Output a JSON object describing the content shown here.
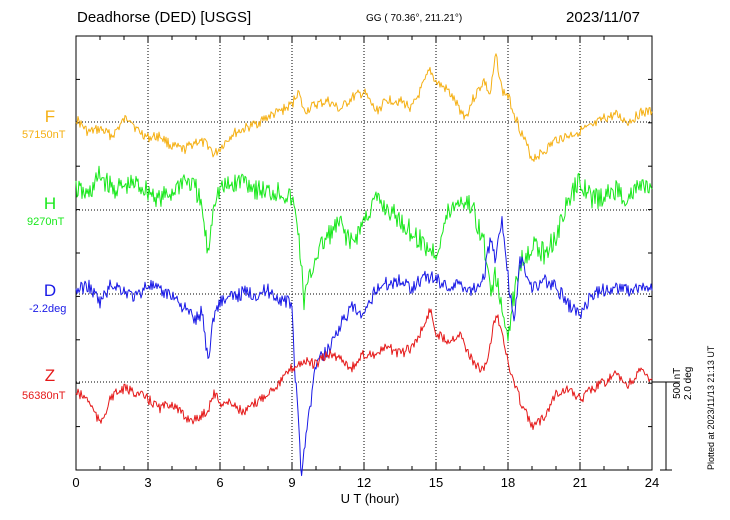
{
  "header": {
    "station": "Deadhorse (DED)  [USGS]",
    "coords": "GG ( 70.36°, 211.21°)",
    "date": "2023/11/07"
  },
  "footer": {
    "xlabel": "U T (hour)",
    "plotted": "Plotted at 2023/11/13 21:13 UT"
  },
  "scale": {
    "nt": "500 nT",
    "deg": "2.0 deg"
  },
  "chart_data": {
    "type": "line",
    "title": "Deadhorse (DED) [USGS] 2023/11/07",
    "xlabel": "U T (hour)",
    "xlim": [
      0,
      24
    ],
    "xticks": [
      "0",
      "3",
      "6",
      "9",
      "12",
      "15",
      "18",
      "21",
      "24"
    ],
    "grid": true,
    "scale_per_division": "500 nT / 2.0 deg",
    "series": [
      {
        "name": "F",
        "baseline_label": "57150nT",
        "color": "#f5b014",
        "x": [
          0,
          0.5,
          1,
          1.5,
          2,
          2.25,
          2.5,
          3,
          3.5,
          4,
          4.5,
          5,
          5.5,
          5.75,
          6,
          6.5,
          7,
          7.5,
          8,
          8.5,
          9,
          9.25,
          9.5,
          10,
          10.5,
          11,
          11.5,
          12,
          12.5,
          13,
          13.5,
          14,
          14.5,
          14.75,
          15,
          15.5,
          16,
          16.25,
          16.5,
          17,
          17.25,
          17.5,
          17.75,
          18,
          18.5,
          19,
          19.5,
          20,
          20.5,
          21,
          21.5,
          22,
          22.5,
          23,
          23.5,
          24
        ],
        "values": [
          20,
          -60,
          -40,
          -80,
          10,
          30,
          -40,
          -90,
          -80,
          -140,
          -160,
          -110,
          -130,
          -190,
          -150,
          -70,
          -40,
          -10,
          30,
          60,
          100,
          180,
          60,
          100,
          120,
          70,
          140,
          170,
          60,
          130,
          120,
          80,
          220,
          300,
          230,
          180,
          70,
          30,
          120,
          240,
          150,
          390,
          180,
          150,
          -40,
          -210,
          -170,
          -100,
          -80,
          -50,
          -30,
          20,
          40,
          0,
          50,
          60
        ]
      },
      {
        "name": "H",
        "baseline_label": "9270nT",
        "color": "#19e81c",
        "x": [
          0,
          0.5,
          1,
          1.5,
          2,
          2.5,
          3,
          3.5,
          4,
          4.5,
          5,
          5.25,
          5.5,
          5.75,
          6,
          6.5,
          7,
          7.5,
          8,
          8.5,
          9,
          9.25,
          9.5,
          10,
          10.5,
          11,
          11.5,
          12,
          12.5,
          13,
          13.5,
          14,
          14.5,
          15,
          15.5,
          16,
          16.5,
          17,
          17.25,
          17.5,
          17.75,
          18,
          18.25,
          18.5,
          19,
          19.5,
          20,
          20.5,
          21,
          21.5,
          22,
          22.5,
          23,
          23.5,
          24
        ],
        "values": [
          120,
          80,
          200,
          120,
          130,
          150,
          110,
          60,
          100,
          180,
          120,
          0,
          -260,
          60,
          120,
          140,
          180,
          120,
          100,
          110,
          60,
          -100,
          -520,
          -260,
          -150,
          -80,
          -200,
          -60,
          60,
          0,
          -60,
          -130,
          -200,
          -250,
          -20,
          60,
          20,
          -200,
          -450,
          -380,
          -600,
          -700,
          -500,
          -300,
          -200,
          -250,
          -150,
          40,
          180,
          60,
          70,
          120,
          60,
          140,
          120
        ]
      },
      {
        "name": "D",
        "baseline_label": "-2.2deg",
        "color": "#1919e6",
        "x": [
          0,
          0.5,
          1,
          1.5,
          2,
          2.5,
          3,
          3.5,
          4,
          4.5,
          5,
          5.25,
          5.5,
          5.75,
          6,
          6.5,
          7,
          7.5,
          8,
          8.5,
          9,
          9.1,
          9.25,
          9.4,
          9.5,
          9.75,
          10,
          10.5,
          11,
          11.5,
          12,
          12.5,
          13,
          13.5,
          14,
          14.5,
          15,
          15.5,
          16,
          16.5,
          17,
          17.25,
          17.5,
          17.75,
          18,
          18.25,
          18.5,
          19,
          19.5,
          20,
          20.5,
          21,
          21.5,
          22,
          22.5,
          23,
          23.5,
          24
        ],
        "values": [
          20,
          50,
          -50,
          60,
          20,
          -20,
          60,
          10,
          0,
          -80,
          -150,
          -100,
          -380,
          -120,
          -40,
          -20,
          10,
          0,
          20,
          -30,
          -60,
          -400,
          -700,
          -1050,
          -880,
          -650,
          -400,
          -320,
          -180,
          -80,
          -140,
          40,
          60,
          80,
          40,
          100,
          90,
          40,
          60,
          20,
          100,
          300,
          200,
          450,
          100,
          -180,
          200,
          40,
          80,
          40,
          -60,
          -120,
          0,
          20,
          40,
          20,
          40,
          20
        ]
      },
      {
        "name": "Z",
        "baseline_label": "56380nT",
        "color": "#e51919",
        "x": [
          0,
          0.5,
          1,
          1.5,
          2,
          2.5,
          3,
          3.5,
          4,
          4.5,
          5,
          5.5,
          5.75,
          6,
          6.5,
          7,
          7.5,
          8,
          8.5,
          9,
          9.5,
          10,
          10.5,
          11,
          11.5,
          12,
          12.5,
          13,
          13.5,
          14,
          14.5,
          14.75,
          15,
          15.5,
          16,
          16.5,
          17,
          17.25,
          17.5,
          17.75,
          18,
          18.5,
          19,
          19.5,
          20,
          20.5,
          21,
          21.5,
          22,
          22.5,
          23,
          23.5,
          24
        ],
        "values": [
          -60,
          -100,
          -240,
          -80,
          -40,
          -60,
          -100,
          -150,
          -120,
          -200,
          -220,
          -160,
          -60,
          -120,
          -120,
          -180,
          -120,
          -60,
          0,
          80,
          120,
          100,
          160,
          140,
          80,
          160,
          160,
          200,
          160,
          200,
          320,
          420,
          280,
          240,
          280,
          120,
          60,
          200,
          400,
          300,
          100,
          -100,
          -260,
          -200,
          -60,
          -40,
          -100,
          -40,
          0,
          40,
          -20,
          60,
          20
        ]
      }
    ]
  }
}
